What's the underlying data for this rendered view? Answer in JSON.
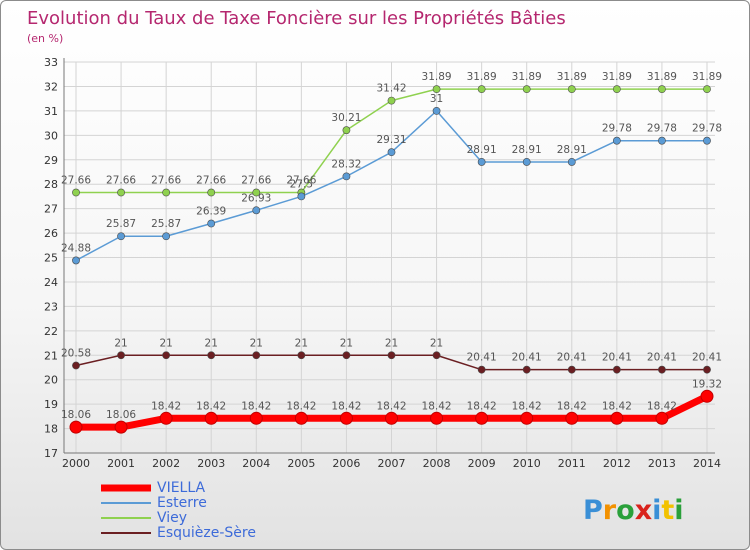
{
  "chart_data": {
    "type": "line",
    "title": "Evolution du Taux de Taxe Foncière sur les Propriétés Bâties",
    "subtitle": "(en %)",
    "xlabel": "",
    "ylabel": "",
    "x": [
      "2000",
      "2001",
      "2002",
      "2003",
      "2004",
      "2005",
      "2006",
      "2007",
      "2008",
      "2009",
      "2010",
      "2011",
      "2012",
      "2013",
      "2014"
    ],
    "ylim": [
      17,
      33
    ],
    "yticks": [
      17,
      18,
      19,
      20,
      21,
      22,
      23,
      24,
      25,
      26,
      27,
      28,
      29,
      30,
      31,
      32,
      33
    ],
    "grid": true,
    "legend_position": "bottom-left",
    "series": [
      {
        "name": "VIELLA",
        "color": "#ff0000",
        "style": "thick",
        "values": [
          18.06,
          18.06,
          18.42,
          18.42,
          18.42,
          18.42,
          18.42,
          18.42,
          18.42,
          18.42,
          18.42,
          18.42,
          18.42,
          18.42,
          19.32
        ],
        "labels": [
          "18.06",
          "18.06",
          "18.42",
          "18.42",
          "18.42",
          "18.42",
          "18.42",
          "18.42",
          "18.42",
          "18.42",
          "18.42",
          "18.42",
          "18.42",
          "18.42",
          "19.32"
        ]
      },
      {
        "name": "Esterre",
        "color": "#5b9bd5",
        "style": "thin",
        "values": [
          24.88,
          25.87,
          25.87,
          26.39,
          26.93,
          27.5,
          28.32,
          29.31,
          31,
          28.91,
          28.91,
          28.91,
          29.78,
          29.78,
          29.78
        ],
        "labels": [
          "24.88",
          "25.87",
          "25.87",
          "26.39",
          "26.93",
          "27.5",
          "28.32",
          "29.31",
          "31",
          "28.91",
          "28.91",
          "28.91",
          "29.78",
          "29.78",
          "29.78"
        ]
      },
      {
        "name": "Viey",
        "color": "#8fd14f",
        "style": "thin",
        "values": [
          27.66,
          27.66,
          27.66,
          27.66,
          27.66,
          27.66,
          30.21,
          31.42,
          31.89,
          31.89,
          31.89,
          31.89,
          31.89,
          31.89,
          31.89
        ],
        "labels": [
          "27.66",
          "27.66",
          "27.66",
          "27.66",
          "27.66",
          "27.66",
          "30.21",
          "31.42",
          "31.89",
          "31.89",
          "31.89",
          "31.89",
          "31.89",
          "31.89",
          "31.89"
        ]
      },
      {
        "name": "Esquièze-Sère",
        "color": "#6b1f22",
        "style": "thin",
        "values": [
          20.58,
          21,
          21,
          21,
          21,
          21,
          21,
          21,
          21,
          20.41,
          20.41,
          20.41,
          20.41,
          20.41,
          20.41
        ],
        "labels": [
          "20.58",
          "21",
          "21",
          "21",
          "21",
          "21",
          "21",
          "21",
          "21",
          "20.41",
          "20.41",
          "20.41",
          "20.41",
          "20.41",
          "20.41"
        ]
      }
    ]
  },
  "logo": {
    "text": "Proxiti",
    "letter_colors": [
      "#3a8fd6",
      "#f29100",
      "#2aa03a",
      "#d9221c",
      "#3a8fd6",
      "#f2c200",
      "#2aa03a"
    ]
  }
}
